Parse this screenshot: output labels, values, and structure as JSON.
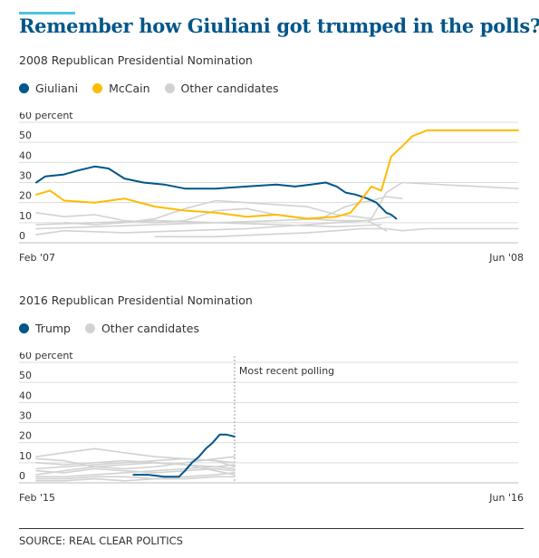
{
  "title": "Remember how Giuliani got trumped in the polls?",
  "source": "SOURCE: REAL CLEAR POLITICS",
  "colors": {
    "title": "#005689",
    "accent_rule": "#4bc6df",
    "navy": "#005689",
    "gold": "#ffbb00",
    "grey": "#d2d2d2"
  },
  "chart_data": [
    {
      "type": "line",
      "title": "2008 Republican Presidential Nomination",
      "x_start_label": "Feb '07",
      "x_end_label": "Jun '08",
      "xlim": [
        "2007-02-01",
        "2008-06-01"
      ],
      "ylim": [
        0,
        60
      ],
      "y_ticks": [
        "60 percent",
        "50",
        "40",
        "30",
        "20",
        "10",
        "0"
      ],
      "grid": true,
      "legend": "top-left",
      "series": [
        {
          "name": "Giuliani",
          "color": "#005689",
          "highlight": true,
          "x": [
            "2007-02-01",
            "2007-02-10",
            "2007-03-01",
            "2007-03-15",
            "2007-04-01",
            "2007-04-15",
            "2007-05-01",
            "2007-05-20",
            "2007-06-10",
            "2007-07-01",
            "2007-08-01",
            "2007-09-01",
            "2007-10-01",
            "2007-10-20",
            "2007-11-05",
            "2007-11-20",
            "2007-12-01",
            "2007-12-10",
            "2007-12-20",
            "2008-01-01",
            "2008-01-10",
            "2008-01-20",
            "2008-01-25",
            "2008-01-30"
          ],
          "y": [
            30,
            33,
            34,
            36,
            38,
            37,
            32,
            30,
            29,
            27,
            27,
            28,
            29,
            28,
            29,
            30,
            28,
            25,
            24,
            22,
            20,
            15,
            14,
            12
          ]
        },
        {
          "name": "McCain",
          "color": "#ffbb00",
          "highlight": true,
          "x": [
            "2007-02-01",
            "2007-02-15",
            "2007-03-01",
            "2007-04-01",
            "2007-05-01",
            "2007-06-01",
            "2007-07-01",
            "2007-08-01",
            "2007-09-01",
            "2007-10-01",
            "2007-11-01",
            "2007-12-01",
            "2007-12-15",
            "2007-12-25",
            "2008-01-05",
            "2008-01-15",
            "2008-01-25",
            "2008-02-05",
            "2008-02-15",
            "2008-03-01",
            "2008-06-01"
          ],
          "y": [
            24,
            26,
            21,
            20,
            22,
            18,
            16,
            15,
            13,
            14,
            12,
            13,
            15,
            21,
            28,
            26,
            43,
            48,
            53,
            56,
            56
          ]
        },
        {
          "name": "Other candidates",
          "color": "#d2d2d2",
          "highlight": false,
          "x": [
            "2007-03-01",
            "2007-04-01",
            "2007-05-01",
            "2007-06-01",
            "2007-07-01",
            "2007-08-01",
            "2007-09-01",
            "2007-10-01",
            "2007-11-01",
            "2007-12-01",
            "2007-12-20",
            "2008-01-05",
            "2008-01-20",
            "2008-02-05",
            "2008-06-01"
          ],
          "y": [
            10,
            9,
            10,
            12,
            17,
            21,
            20,
            19,
            18,
            14,
            13,
            12,
            25,
            30,
            27
          ]
        },
        {
          "name": "Other candidates",
          "color": "#d2d2d2",
          "highlight": false,
          "x": [
            "2007-02-01",
            "2007-04-01",
            "2007-06-01",
            "2007-08-01",
            "2007-10-01",
            "2007-11-15",
            "2007-12-10",
            "2007-12-25",
            "2008-01-05",
            "2008-01-20",
            "2008-02-05"
          ],
          "y": [
            7,
            8,
            9,
            10,
            11,
            12,
            18,
            20,
            21,
            23,
            22
          ]
        },
        {
          "name": "Other candidates",
          "color": "#d2d2d2",
          "highlight": false,
          "x": [
            "2007-02-01",
            "2007-03-01",
            "2007-04-01",
            "2007-05-01",
            "2007-06-01",
            "2007-07-01",
            "2007-08-01",
            "2007-09-01",
            "2007-10-01",
            "2007-11-01",
            "2007-12-01",
            "2008-01-01",
            "2008-01-25"
          ],
          "y": [
            15,
            13,
            14,
            11,
            10,
            11,
            16,
            17,
            14,
            12,
            11,
            11,
            13
          ]
        },
        {
          "name": "Other candidates",
          "color": "#d2d2d2",
          "highlight": false,
          "x": [
            "2007-02-01",
            "2007-04-01",
            "2007-06-01",
            "2007-08-01",
            "2007-10-01",
            "2007-12-01",
            "2008-01-15"
          ],
          "y": [
            9,
            10,
            11,
            10,
            9,
            8,
            9
          ]
        },
        {
          "name": "Other candidates",
          "color": "#d2d2d2",
          "highlight": false,
          "x": [
            "2007-06-01",
            "2007-08-01",
            "2007-09-15",
            "2007-11-01",
            "2007-12-01",
            "2007-12-25",
            "2008-01-20",
            "2008-02-05",
            "2008-03-01",
            "2008-06-01"
          ],
          "y": [
            3,
            3,
            4,
            5,
            6,
            7,
            7,
            6,
            7,
            7
          ]
        },
        {
          "name": "Other candidates",
          "color": "#d2d2d2",
          "highlight": false,
          "x": [
            "2007-02-01",
            "2007-03-01",
            "2007-05-01",
            "2007-07-01",
            "2007-09-01",
            "2007-11-01",
            "2008-01-01",
            "2008-01-20"
          ],
          "y": [
            4,
            6,
            5,
            6,
            7,
            9,
            11,
            6
          ]
        }
      ]
    },
    {
      "type": "line",
      "title": "2016 Republican Presidential Nomination",
      "x_start_label": "Feb '15",
      "x_end_label": "Jun '16",
      "xlim": [
        "2015-02-01",
        "2016-06-01"
      ],
      "ylim": [
        0,
        60
      ],
      "y_ticks": [
        "60 percent",
        "50",
        "40",
        "30",
        "20",
        "10",
        "0"
      ],
      "grid": true,
      "legend": "top-left",
      "annotation": {
        "text": "Most recent polling",
        "x": "2015-08-20"
      },
      "series": [
        {
          "name": "Trump",
          "color": "#005689",
          "highlight": true,
          "x": [
            "2015-05-10",
            "2015-05-25",
            "2015-06-10",
            "2015-06-25",
            "2015-07-01",
            "2015-07-08",
            "2015-07-15",
            "2015-07-22",
            "2015-07-29",
            "2015-08-05",
            "2015-08-12",
            "2015-08-20"
          ],
          "y": [
            4,
            4,
            3,
            3,
            6,
            10,
            13,
            17,
            20,
            24,
            24,
            23
          ]
        },
        {
          "name": "Other candidates",
          "color": "#d2d2d2",
          "highlight": false,
          "x": [
            "2015-02-01",
            "2015-03-01",
            "2015-04-01",
            "2015-05-01",
            "2015-06-01",
            "2015-07-01",
            "2015-08-01",
            "2015-08-20"
          ],
          "y": [
            13,
            15,
            17,
            15,
            13,
            12,
            11,
            10
          ]
        },
        {
          "name": "Other candidates",
          "color": "#d2d2d2",
          "highlight": false,
          "x": [
            "2015-02-01",
            "2015-03-01",
            "2015-04-01",
            "2015-05-01",
            "2015-06-01",
            "2015-07-01",
            "2015-08-01",
            "2015-08-20"
          ],
          "y": [
            10,
            9,
            10,
            11,
            10,
            9,
            8,
            7
          ]
        },
        {
          "name": "Other candidates",
          "color": "#d2d2d2",
          "highlight": false,
          "x": [
            "2015-02-01",
            "2015-03-01",
            "2015-04-01",
            "2015-05-01",
            "2015-06-01",
            "2015-07-01",
            "2015-08-01",
            "2015-08-20"
          ],
          "y": [
            7,
            8,
            9,
            10,
            11,
            12,
            11,
            8
          ]
        },
        {
          "name": "Other candidates",
          "color": "#d2d2d2",
          "highlight": false,
          "x": [
            "2015-02-01",
            "2015-03-01",
            "2015-04-01",
            "2015-05-01",
            "2015-06-01",
            "2015-07-01",
            "2015-08-01",
            "2015-08-20"
          ],
          "y": [
            6,
            5,
            7,
            6,
            5,
            6,
            7,
            6
          ]
        },
        {
          "name": "Other candidates",
          "color": "#d2d2d2",
          "highlight": false,
          "x": [
            "2015-02-01",
            "2015-03-01",
            "2015-04-01",
            "2015-05-01",
            "2015-06-01",
            "2015-07-01",
            "2015-08-01",
            "2015-08-20"
          ],
          "y": [
            4,
            6,
            8,
            9,
            10,
            9,
            6,
            4
          ]
        },
        {
          "name": "Other candidates",
          "color": "#d2d2d2",
          "highlight": false,
          "x": [
            "2015-02-01",
            "2015-03-01",
            "2015-04-01",
            "2015-05-01",
            "2015-06-01",
            "2015-07-01",
            "2015-08-01",
            "2015-08-20"
          ],
          "y": [
            3,
            3,
            4,
            5,
            6,
            7,
            8,
            9
          ]
        },
        {
          "name": "Other candidates",
          "color": "#d2d2d2",
          "highlight": false,
          "x": [
            "2015-02-01",
            "2015-03-01",
            "2015-04-01",
            "2015-05-01",
            "2015-06-01",
            "2015-07-01",
            "2015-08-01",
            "2015-08-20"
          ],
          "y": [
            2,
            2,
            3,
            3,
            2,
            3,
            4,
            5
          ]
        },
        {
          "name": "Other candidates",
          "color": "#d2d2d2",
          "highlight": false,
          "x": [
            "2015-02-01",
            "2015-03-01",
            "2015-04-01",
            "2015-05-01",
            "2015-06-01",
            "2015-07-01",
            "2015-08-01",
            "2015-08-20"
          ],
          "y": [
            1,
            1,
            2,
            1,
            2,
            2,
            3,
            3
          ]
        },
        {
          "name": "Other candidates",
          "color": "#d2d2d2",
          "highlight": false,
          "x": [
            "2015-02-01",
            "2015-03-01",
            "2015-04-01",
            "2015-05-01",
            "2015-06-01",
            "2015-07-01",
            "2015-08-01",
            "2015-08-20"
          ],
          "y": [
            12,
            11,
            8,
            7,
            8,
            10,
            12,
            13
          ]
        }
      ]
    }
  ]
}
